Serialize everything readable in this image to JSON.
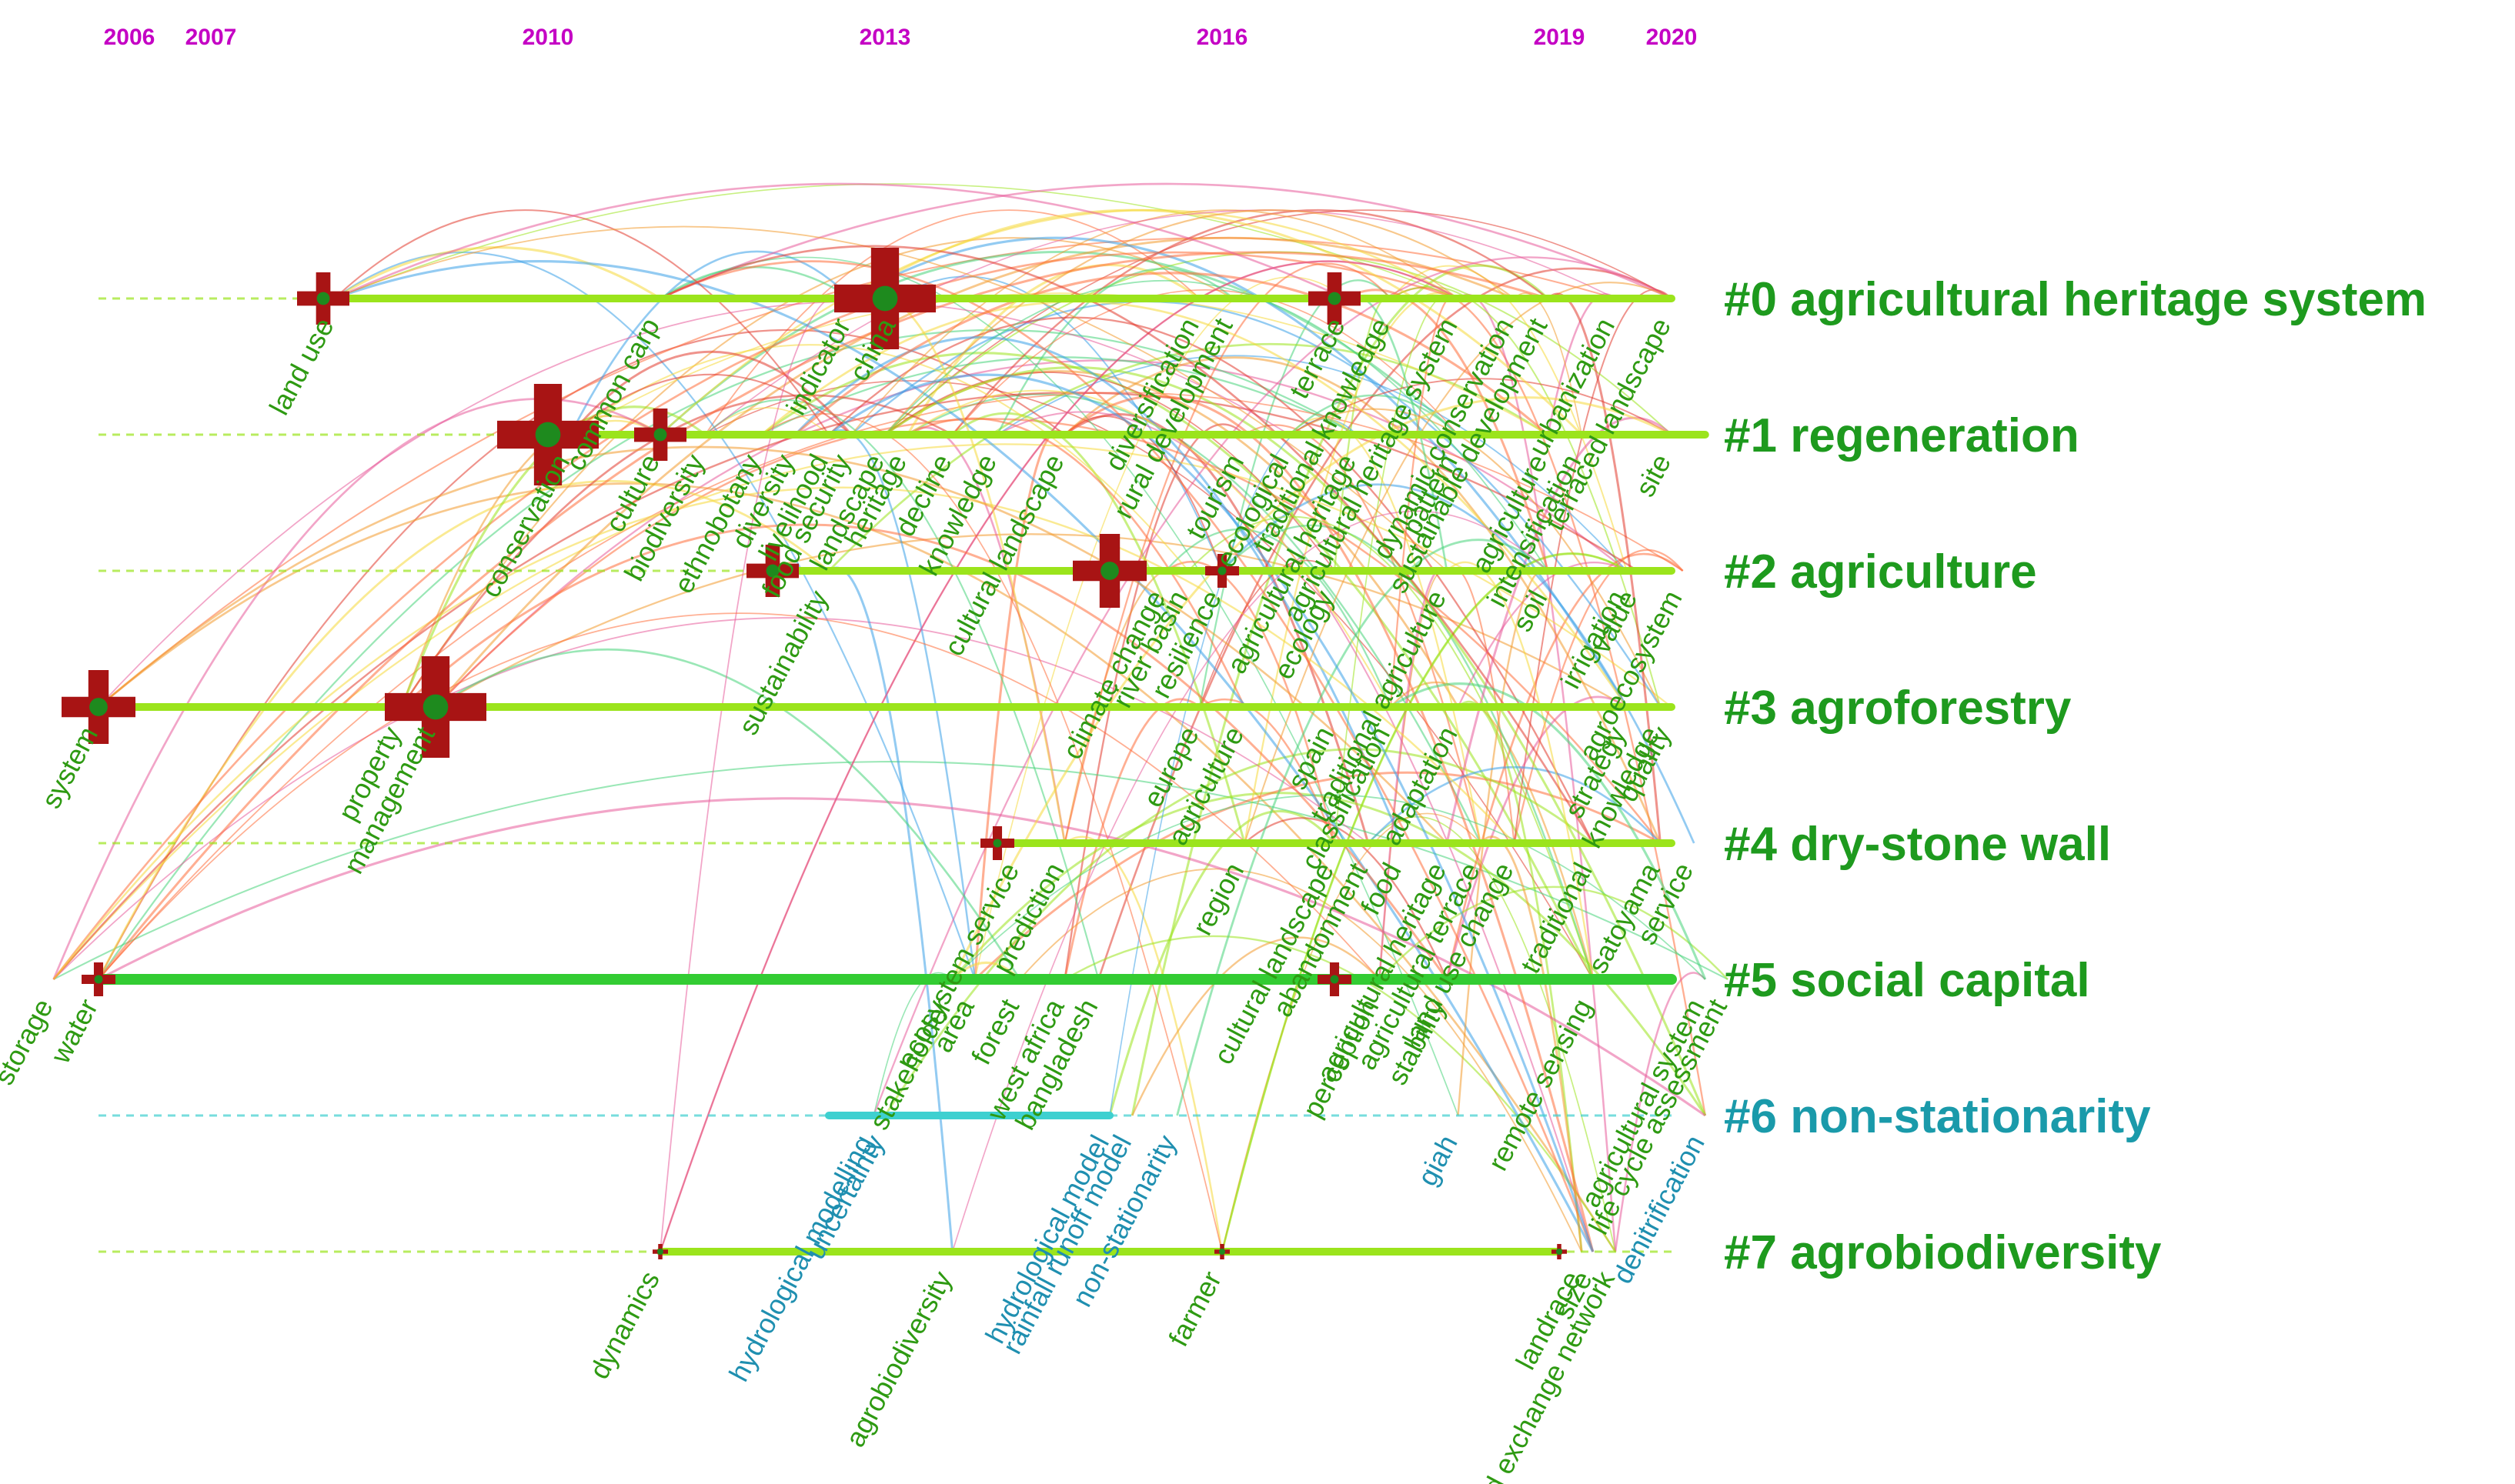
{
  "years": [
    {
      "label": "2006",
      "year": 2006
    },
    {
      "label": "2007",
      "year": 2007
    },
    {
      "label": "2010",
      "year": 2010
    },
    {
      "label": "2013",
      "year": 2013
    },
    {
      "label": "2016",
      "year": 2016
    },
    {
      "label": "2019",
      "year": 2019
    },
    {
      "label": "2020",
      "year": 2020
    }
  ],
  "clusters": [
    {
      "id": 0,
      "label": "#0 agricultural heritage system",
      "color": "#1e9a1e",
      "start": 2008.0,
      "end": 2020.0
    },
    {
      "id": 1,
      "label": "#1 regeneration",
      "color": "#1e9a1e",
      "start": 2010.0,
      "end": 2020.3
    },
    {
      "id": 2,
      "label": "#2 agriculture",
      "color": "#1e9a1e",
      "start": 2012.0,
      "end": 2020.0
    },
    {
      "id": 3,
      "label": "#3 agroforestry",
      "color": "#1e9a1e",
      "start": 2006.0,
      "end": 2020.0
    },
    {
      "id": 4,
      "label": "#4 dry-stone wall",
      "color": "#1e9a1e",
      "start": 2014.0,
      "end": 2020.0
    },
    {
      "id": 5,
      "label": "#5 social capital",
      "color": "#1e9a1e",
      "start": 2006.0,
      "end": 2020.0
    },
    {
      "id": 6,
      "label": "#6 non-stationarity",
      "color": "#1a9aaa",
      "start": 2012.5,
      "end": 2015.0
    },
    {
      "id": 7,
      "label": "#7 agrobiodiversity",
      "color": "#1e9a1e",
      "start": 2011.0,
      "end": 2019.0
    }
  ],
  "nodes": [
    {
      "cluster": 0,
      "year": 2008.0,
      "size": 2
    },
    {
      "cluster": 0,
      "year": 2013.0,
      "size": 4
    },
    {
      "cluster": 0,
      "year": 2017.0,
      "size": 2
    },
    {
      "cluster": 1,
      "year": 2010.0,
      "size": 4
    },
    {
      "cluster": 1,
      "year": 2011.0,
      "size": 2
    },
    {
      "cluster": 2,
      "year": 2012.0,
      "size": 2
    },
    {
      "cluster": 2,
      "year": 2015.0,
      "size": 3
    },
    {
      "cluster": 2,
      "year": 2016.0,
      "size": 1
    },
    {
      "cluster": 3,
      "year": 2006.0,
      "size": 3
    },
    {
      "cluster": 3,
      "year": 2009.0,
      "size": 4
    },
    {
      "cluster": 4,
      "year": 2014.0,
      "size": 1
    },
    {
      "cluster": 5,
      "year": 2006.0,
      "size": 1
    },
    {
      "cluster": 5,
      "year": 2017.0,
      "size": 1
    },
    {
      "cluster": 7,
      "year": 2011.0,
      "size": 0
    },
    {
      "cluster": 7,
      "year": 2016.0,
      "size": 0
    },
    {
      "cluster": 7,
      "year": 2019.0,
      "size": 0
    }
  ],
  "keywords": [
    {
      "text": "land use",
      "cluster": 0,
      "year": 2008.1
    },
    {
      "text": "common carp",
      "cluster": 0,
      "year": 2011.0
    },
    {
      "text": "indicator",
      "cluster": 0,
      "year": 2012.7
    },
    {
      "text": "china",
      "cluster": 0,
      "year": 2013.1
    },
    {
      "text": "diversification",
      "cluster": 0,
      "year": 2015.8
    },
    {
      "text": "rural development",
      "cluster": 0,
      "year": 2016.1
    },
    {
      "text": "terrace",
      "cluster": 0,
      "year": 2017.1
    },
    {
      "text": "traditional knowledge",
      "cluster": 0,
      "year": 2017.5
    },
    {
      "text": "agricultural heritage system",
      "cluster": 0,
      "year": 2018.1
    },
    {
      "text": "dynamic conservation",
      "cluster": 0,
      "year": 2018.6
    },
    {
      "text": "sustainable development",
      "cluster": 0,
      "year": 2018.9
    },
    {
      "text": "urbanization",
      "cluster": 0,
      "year": 2019.5
    },
    {
      "text": "terraced landscape",
      "cluster": 0,
      "year": 2020.0
    },
    {
      "text": "conservation",
      "cluster": 1,
      "year": 2010.2
    },
    {
      "text": "culture",
      "cluster": 1,
      "year": 2011.0
    },
    {
      "text": "biodiversity",
      "cluster": 1,
      "year": 2011.4
    },
    {
      "text": "ethnobotany",
      "cluster": 1,
      "year": 2011.9
    },
    {
      "text": "diversity",
      "cluster": 1,
      "year": 2012.2
    },
    {
      "text": "livelihood",
      "cluster": 1,
      "year": 2012.5
    },
    {
      "text": "food security",
      "cluster": 1,
      "year": 2012.7
    },
    {
      "text": "landscape",
      "cluster": 1,
      "year": 2013.0
    },
    {
      "text": "heritage",
      "cluster": 1,
      "year": 2013.2
    },
    {
      "text": "decline",
      "cluster": 1,
      "year": 2013.6
    },
    {
      "text": "knowledge",
      "cluster": 1,
      "year": 2014.0
    },
    {
      "text": "cultural landscape",
      "cluster": 1,
      "year": 2014.6
    },
    {
      "text": "tourism",
      "cluster": 1,
      "year": 2016.2
    },
    {
      "text": "ecological",
      "cluster": 1,
      "year": 2016.6
    },
    {
      "text": "agricultural heritage",
      "cluster": 1,
      "year": 2017.2
    },
    {
      "text": "pattern",
      "cluster": 1,
      "year": 2018.1
    },
    {
      "text": "agriculture",
      "cluster": 1,
      "year": 2018.9
    },
    {
      "text": "intensification",
      "cluster": 1,
      "year": 2019.2
    },
    {
      "text": "site",
      "cluster": 1,
      "year": 2020.0
    },
    {
      "text": "sustainability",
      "cluster": 2,
      "year": 2012.5
    },
    {
      "text": "climate change",
      "cluster": 2,
      "year": 2015.5
    },
    {
      "text": "river basin",
      "cluster": 2,
      "year": 2015.7
    },
    {
      "text": "resilience",
      "cluster": 2,
      "year": 2016.0
    },
    {
      "text": "ecology",
      "cluster": 2,
      "year": 2017.0
    },
    {
      "text": "traditional agriculture",
      "cluster": 2,
      "year": 2018.0
    },
    {
      "text": "soil",
      "cluster": 2,
      "year": 2018.9
    },
    {
      "text": "irrigation",
      "cluster": 2,
      "year": 2019.6
    },
    {
      "text": "value",
      "cluster": 2,
      "year": 2019.7
    },
    {
      "text": "agroecosystem",
      "cluster": 2,
      "year": 2020.1
    },
    {
      "text": "system",
      "cluster": 3,
      "year": 2006.0
    },
    {
      "text": "property",
      "cluster": 3,
      "year": 2008.7
    },
    {
      "text": "management",
      "cluster": 3,
      "year": 2009.0
    },
    {
      "text": "europe",
      "cluster": 3,
      "year": 2015.8
    },
    {
      "text": "agriculture",
      "cluster": 3,
      "year": 2016.2
    },
    {
      "text": "spain",
      "cluster": 3,
      "year": 2017.0
    },
    {
      "text": "classification",
      "cluster": 3,
      "year": 2017.5
    },
    {
      "text": "adaptation",
      "cluster": 3,
      "year": 2018.1
    },
    {
      "text": "strategy",
      "cluster": 3,
      "year": 2019.6
    },
    {
      "text": "knowledge",
      "cluster": 3,
      "year": 2019.9
    },
    {
      "text": "quality",
      "cluster": 3,
      "year": 2020.0
    },
    {
      "text": "ecosystem service",
      "cluster": 4,
      "year": 2014.2
    },
    {
      "text": "prediction",
      "cluster": 4,
      "year": 2014.6
    },
    {
      "text": "region",
      "cluster": 4,
      "year": 2016.2
    },
    {
      "text": "cultural landscape",
      "cluster": 4,
      "year": 2017.0
    },
    {
      "text": "abandonment",
      "cluster": 4,
      "year": 2017.3
    },
    {
      "text": "food",
      "cluster": 4,
      "year": 2017.6
    },
    {
      "text": "agricultural heritage",
      "cluster": 4,
      "year": 2018.0
    },
    {
      "text": "agricultural terrace",
      "cluster": 4,
      "year": 2018.3
    },
    {
      "text": "land use change",
      "cluster": 4,
      "year": 2018.6
    },
    {
      "text": "traditional",
      "cluster": 4,
      "year": 2019.3
    },
    {
      "text": "satoyama",
      "cluster": 4,
      "year": 2019.9
    },
    {
      "text": "service",
      "cluster": 4,
      "year": 2020.2
    },
    {
      "text": "storage",
      "cluster": 5,
      "year": 2005.6
    },
    {
      "text": "water",
      "cluster": 5,
      "year": 2006.0
    },
    {
      "text": "stakeholder",
      "cluster": 5,
      "year": 2013.6
    },
    {
      "text": "area",
      "cluster": 5,
      "year": 2013.8
    },
    {
      "text": "forest",
      "cluster": 5,
      "year": 2014.2
    },
    {
      "text": "west africa",
      "cluster": 5,
      "year": 2014.6
    },
    {
      "text": "bangladesh",
      "cluster": 5,
      "year": 2014.9
    },
    {
      "text": "perception",
      "cluster": 5,
      "year": 2017.4
    },
    {
      "text": "stability",
      "cluster": 5,
      "year": 2018.0
    },
    {
      "text": "remote sensing",
      "cluster": 5,
      "year": 2019.3
    },
    {
      "text": "agricultural system",
      "cluster": 5,
      "year": 2020.3
    },
    {
      "text": "life cycle assessment",
      "cluster": 5,
      "year": 2020.5
    },
    {
      "text": "hydrological modelling",
      "cluster": 6,
      "year": 2012.9
    },
    {
      "text": "uncertainty",
      "cluster": 6,
      "year": 2013.0
    },
    {
      "text": "hydrological model",
      "cluster": 6,
      "year": 2015.0
    },
    {
      "text": "rainfall runoff model",
      "cluster": 6,
      "year": 2015.2
    },
    {
      "text": "non-stationarity",
      "cluster": 6,
      "year": 2015.6
    },
    {
      "text": "giah",
      "cluster": 6,
      "year": 2018.1
    },
    {
      "text": "denitrification",
      "cluster": 6,
      "year": 2020.3
    },
    {
      "text": "dynamics",
      "cluster": 7,
      "year": 2011.0
    },
    {
      "text": "agrobiodiversity",
      "cluster": 7,
      "year": 2013.6
    },
    {
      "text": "farmer",
      "cluster": 7,
      "year": 2016.0
    },
    {
      "text": "landrace",
      "cluster": 7,
      "year": 2019.2
    },
    {
      "text": "size",
      "cluster": 7,
      "year": 2019.3
    },
    {
      "text": "seed exchange network",
      "cluster": 7,
      "year": 2019.5
    }
  ],
  "colors": {
    "year_labels": "#c400c4",
    "timeline": "#9be41c",
    "timeline_teal": "#3ed0d0",
    "node_ring": "#a81414",
    "node_core": "#1e8a1e"
  }
}
